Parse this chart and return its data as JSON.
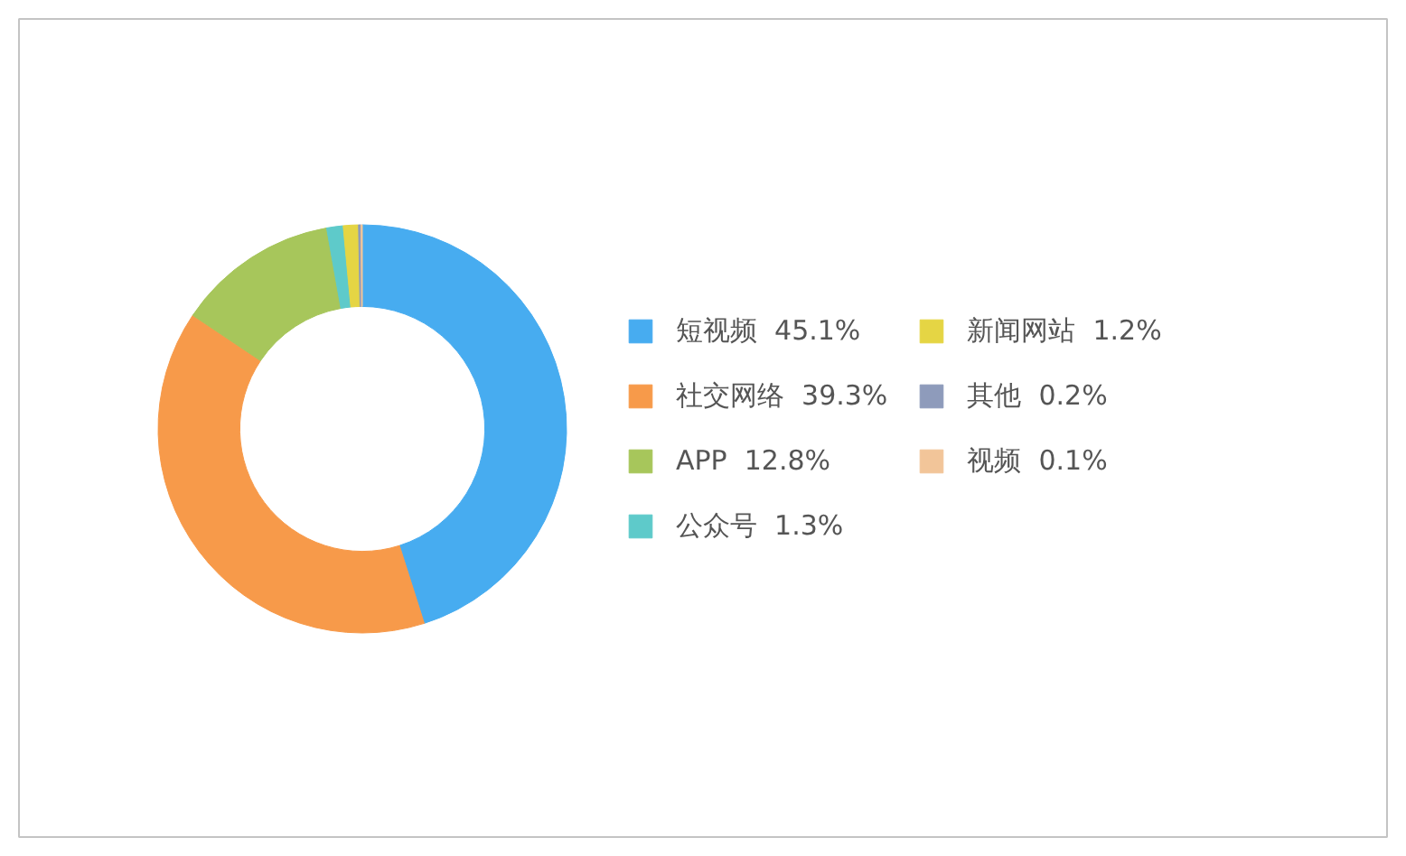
{
  "chart_data": {
    "type": "donut",
    "categories": [
      "短视频",
      "社交网络",
      "APP",
      "公众号",
      "新闻网站",
      "其他",
      "视频"
    ],
    "values": [
      45.1,
      39.3,
      12.8,
      1.3,
      1.2,
      0.2,
      0.1
    ],
    "value_labels": [
      "45.1%",
      "39.3%",
      "12.8%",
      "1.3%",
      "1.2%",
      "0.2%",
      "0.1%"
    ],
    "colors": [
      "#47acf0",
      "#f79a4a",
      "#a7c65b",
      "#5ecaca",
      "#e5d544",
      "#8e9bbb",
      "#f2c599"
    ],
    "legend": "right"
  }
}
